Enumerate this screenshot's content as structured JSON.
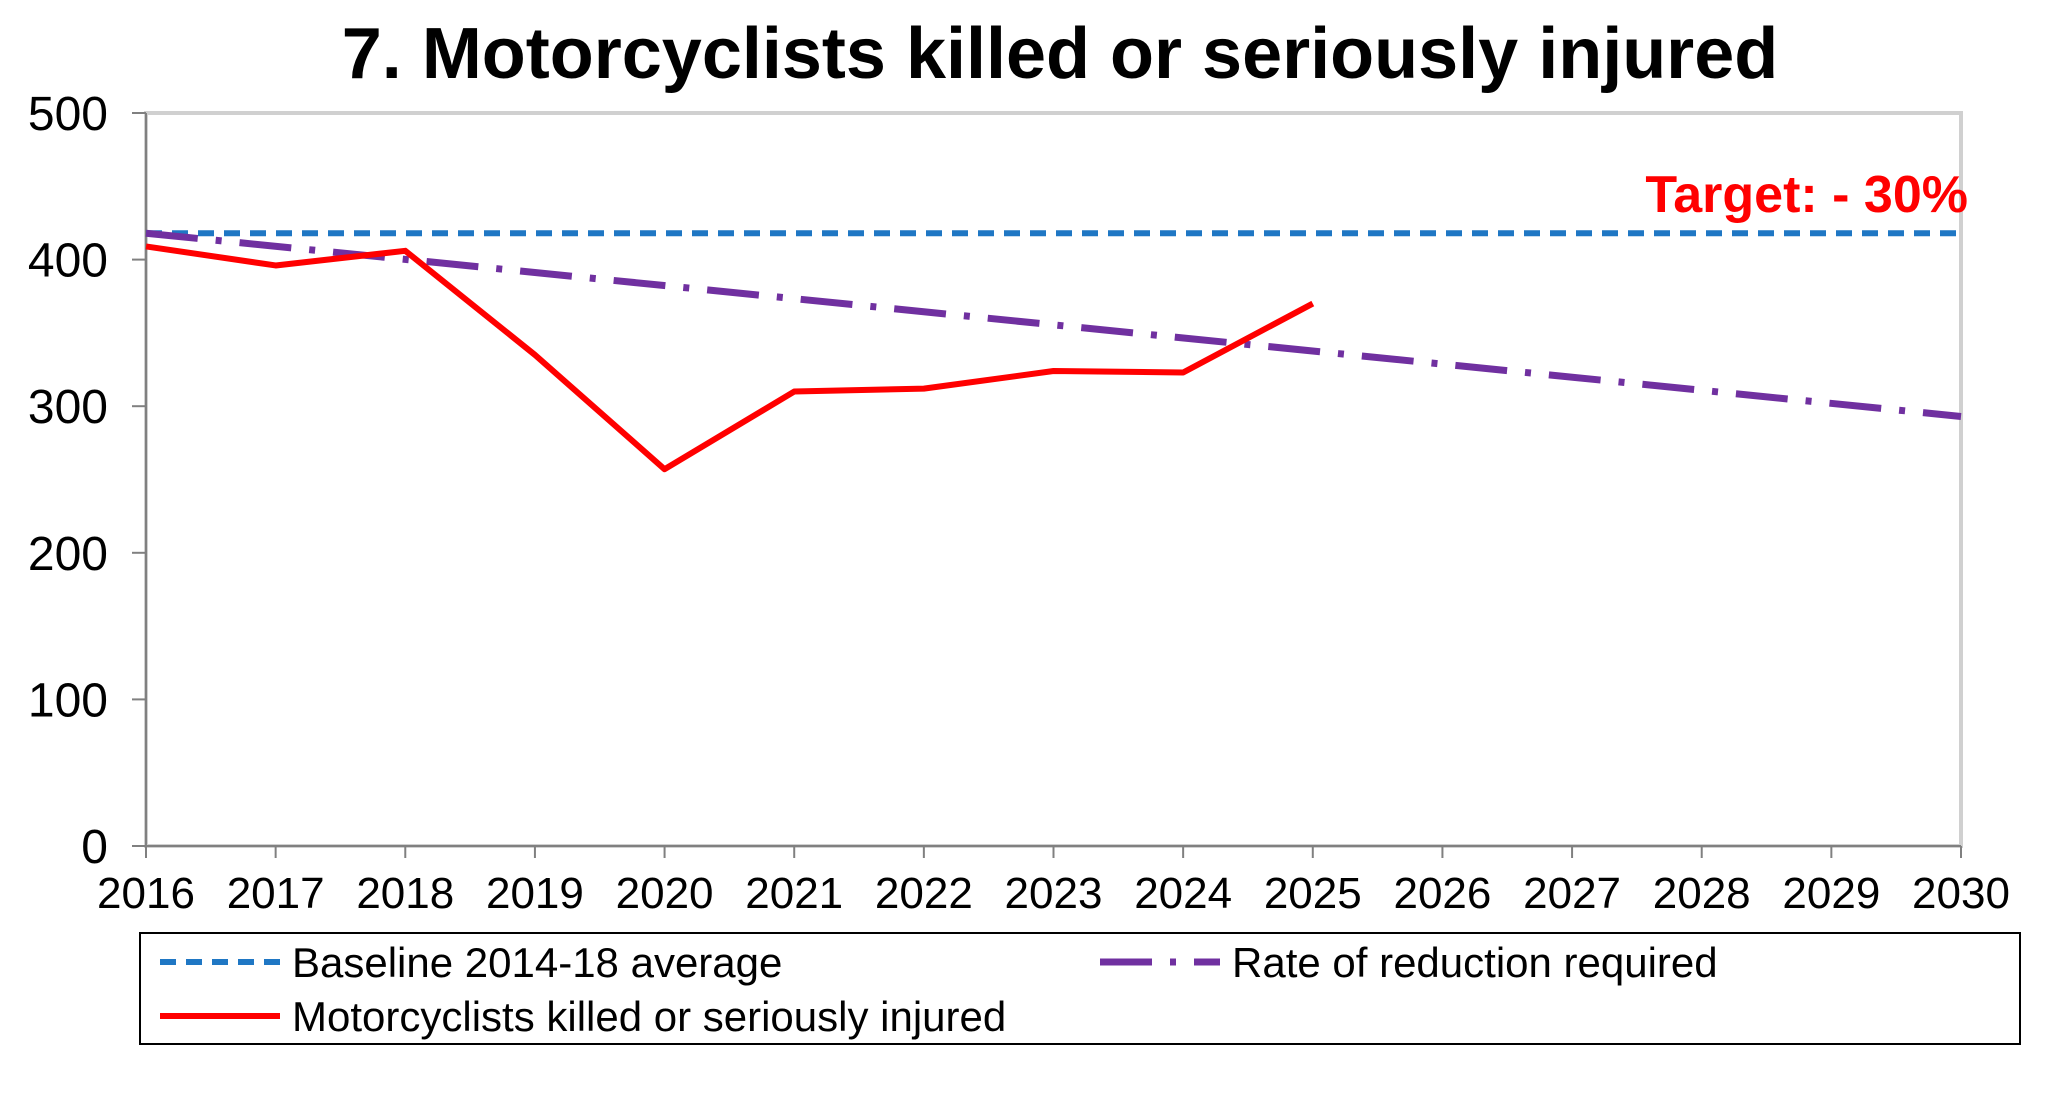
{
  "chart_data": {
    "type": "line",
    "title": "7. Motorcyclists killed or seriously injured",
    "xlabel": "",
    "ylabel": "",
    "x": [
      2016,
      2017,
      2018,
      2019,
      2020,
      2021,
      2022,
      2023,
      2024,
      2025,
      2026,
      2027,
      2028,
      2029,
      2030
    ],
    "ylim": [
      0,
      500
    ],
    "yticks": [
      0,
      100,
      200,
      300,
      400,
      500
    ],
    "grid": false,
    "legend_position": "bottom",
    "series": [
      {
        "name": "Baseline 2014-18 average",
        "style": "dashed",
        "color": "#1f77c4",
        "x": [
          2016,
          2030
        ],
        "values": [
          418,
          418
        ]
      },
      {
        "name": "Rate of reduction required",
        "style": "dash-dot",
        "color": "#7030a0",
        "x": [
          2016,
          2030
        ],
        "values": [
          418,
          293
        ]
      },
      {
        "name": "Motorcyclists killed or seriously injured",
        "style": "solid",
        "color": "#ff0000",
        "x": [
          2016,
          2017,
          2018,
          2019,
          2020,
          2021,
          2022,
          2023,
          2024,
          2025
        ],
        "values": [
          409,
          396,
          406,
          335,
          257,
          310,
          312,
          324,
          323,
          370
        ]
      }
    ],
    "annotations": [
      {
        "text": "Target: - 30%",
        "color": "#ff0000"
      }
    ]
  }
}
